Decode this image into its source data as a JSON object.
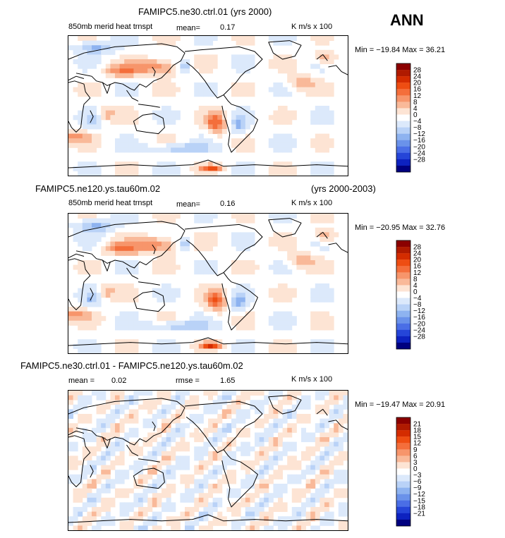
{
  "season": "ANN",
  "panels": [
    {
      "title": "FAMIPC5.ne30.ctrl.01 (yrs 2000)",
      "years": "",
      "left_label": "850mb merid heat trnspt",
      "mean_label": "mean=",
      "mean_value": "0.17",
      "rmse_label": "",
      "rmse_value": "",
      "units": "K m/s x 100",
      "min_label": "Min = ",
      "min_value": "−19.84",
      "max_label": "Max = ",
      "max_value": "36.21",
      "colorbar_levels": [
        "28",
        "24",
        "20",
        "16",
        "12",
        "8",
        "4",
        "0",
        "−4",
        "−8",
        "−12",
        "−16",
        "−20",
        "−24",
        "−28"
      ]
    },
    {
      "title": "FAMIPC5.ne120.ys.tau60m.02",
      "years": "(yrs 2000-2003)",
      "left_label": "850mb merid heat trnspt",
      "mean_label": "mean=",
      "mean_value": "0.16",
      "rmse_label": "",
      "rmse_value": "",
      "units": "K m/s x 100",
      "min_label": "Min = ",
      "min_value": "−20.95",
      "max_label": "Max = ",
      "max_value": "32.76",
      "colorbar_levels": [
        "28",
        "24",
        "20",
        "16",
        "12",
        "8",
        "4",
        "0",
        "−4",
        "−8",
        "−12",
        "−16",
        "−20",
        "−24",
        "−28"
      ]
    },
    {
      "title": "FAMIPC5.ne30.ctrl.01 - FAMIPC5.ne120.ys.tau60m.02",
      "years": "",
      "left_label": "mean =",
      "mean_label": "",
      "mean_value": "0.02",
      "rmse_label": "rmse =",
      "rmse_value": "1.65",
      "units": "K m/s x 100",
      "min_label": "Min = ",
      "min_value": "−19.47",
      "max_label": "Max = ",
      "max_value": "20.91",
      "colorbar_levels": [
        "21",
        "18",
        "15",
        "12",
        "9",
        "6",
        "3",
        "0",
        "−3",
        "−6",
        "−9",
        "−12",
        "−15",
        "−18",
        "−21"
      ]
    }
  ],
  "colors": {
    "bins_top_to_bottom": [
      "#8b0000",
      "#b01a00",
      "#d42c00",
      "#ee4d12",
      "#f46e3b",
      "#f7956b",
      "#f9b999",
      "#fde4d4",
      "#ffffff",
      "#dce9fb",
      "#b9d2f7",
      "#8eb3f0",
      "#6a92ea",
      "#4a6ee6",
      "#2545d8",
      "#0d22c0",
      "#00007f"
    ],
    "coast": "#000000"
  }
}
